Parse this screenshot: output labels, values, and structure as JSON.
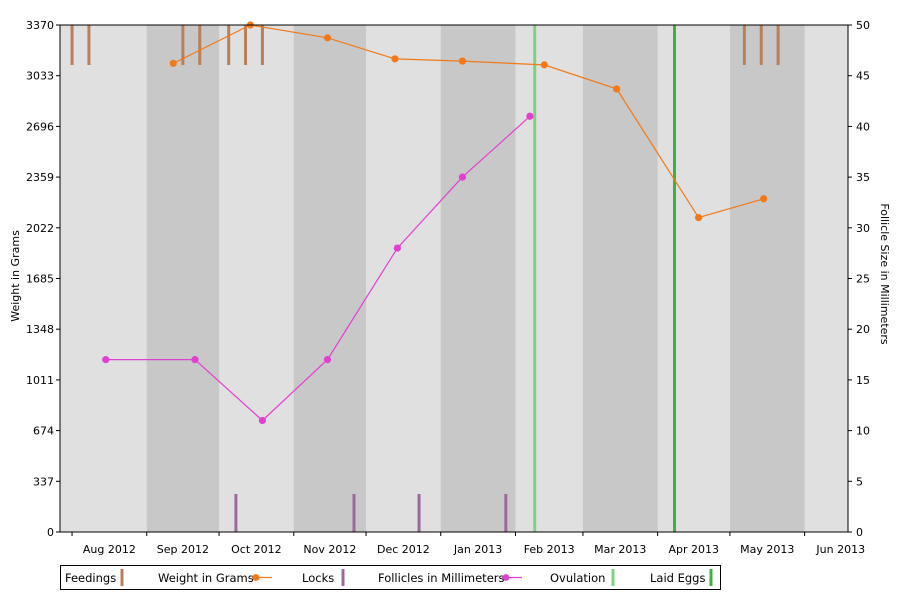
{
  "chart_data": {
    "type": "line",
    "months": [
      "Aug 2012",
      "Sep 2012",
      "Oct 2012",
      "Nov 2012",
      "Dec 2012",
      "Jan 2013",
      "Feb 2013",
      "Mar 2013",
      "Apr 2013",
      "May 2013",
      "Jun 2013"
    ],
    "x_range": [
      "2012-07-27",
      "2013-06-19"
    ],
    "shaded_month_pairs": "alternating light/dark gray month columns",
    "y_left": {
      "label": "Weight in Grams",
      "ticks": [
        0,
        337,
        674,
        1011,
        1348,
        1685,
        2022,
        2359,
        2696,
        3033,
        3370
      ],
      "range": [
        0,
        3370
      ]
    },
    "y_right": {
      "label": "Follicle Size in Millimeters",
      "ticks": [
        0,
        5,
        10,
        15,
        20,
        25,
        30,
        35,
        40,
        45,
        50
      ],
      "range": [
        0,
        50
      ]
    },
    "series": [
      {
        "name": "Weight in Grams",
        "axis": "left",
        "color": "#f07a1a",
        "points": [
          {
            "x": "2012-09-12",
            "y": 3115
          },
          {
            "x": "2012-10-14",
            "y": 3370
          },
          {
            "x": "2012-11-15",
            "y": 3285
          },
          {
            "x": "2012-12-13",
            "y": 3145
          },
          {
            "x": "2013-01-10",
            "y": 3130
          },
          {
            "x": "2013-02-13",
            "y": 3105
          },
          {
            "x": "2013-03-15",
            "y": 2945
          },
          {
            "x": "2013-04-18",
            "y": 2090
          },
          {
            "x": "2013-05-15",
            "y": 2215
          }
        ]
      },
      {
        "name": "Follicles in Millimeters",
        "axis": "right",
        "color": "#e040d0",
        "points": [
          {
            "x": "2012-08-15",
            "y": 17
          },
          {
            "x": "2012-09-21",
            "y": 17
          },
          {
            "x": "2012-10-19",
            "y": 11
          },
          {
            "x": "2012-11-15",
            "y": 17
          },
          {
            "x": "2012-12-14",
            "y": 28
          },
          {
            "x": "2013-01-10",
            "y": 35
          },
          {
            "x": "2013-02-07",
            "y": 41
          }
        ]
      },
      {
        "name": "Feedings",
        "type": "event",
        "color": "#b8805a",
        "position": "top",
        "dates": [
          "2012-08-01",
          "2012-08-08",
          "2012-09-16",
          "2012-09-23",
          "2012-10-05",
          "2012-10-12",
          "2012-10-19",
          "2013-05-07",
          "2013-05-14",
          "2013-05-21"
        ]
      },
      {
        "name": "Locks",
        "type": "event",
        "color": "#9b6a9b",
        "position": "bottom",
        "dates": [
          "2012-10-08",
          "2012-11-26",
          "2012-12-23",
          "2013-01-28"
        ]
      },
      {
        "name": "Ovulation",
        "type": "event",
        "color": "#7fd07f",
        "position": "full",
        "dates": [
          "2013-02-09"
        ]
      },
      {
        "name": "Laid Eggs",
        "type": "event",
        "color": "#40b040",
        "position": "full",
        "dates": [
          "2013-04-08"
        ]
      }
    ],
    "legend": {
      "placement": "bottom-left",
      "items": [
        {
          "label": "Feedings",
          "marker": "bar",
          "color": "#b8805a"
        },
        {
          "label": "Weight in Grams",
          "marker": "line-dot",
          "color": "#f07a1a"
        },
        {
          "label": "Locks",
          "marker": "bar",
          "color": "#9b6a9b"
        },
        {
          "label": "Follicles in Millimeters",
          "marker": "line-dot",
          "color": "#e040d0"
        },
        {
          "label": "Ovulation",
          "marker": "bar",
          "color": "#7fd07f"
        },
        {
          "label": "Laid Eggs",
          "marker": "bar",
          "color": "#40b040"
        }
      ]
    }
  }
}
